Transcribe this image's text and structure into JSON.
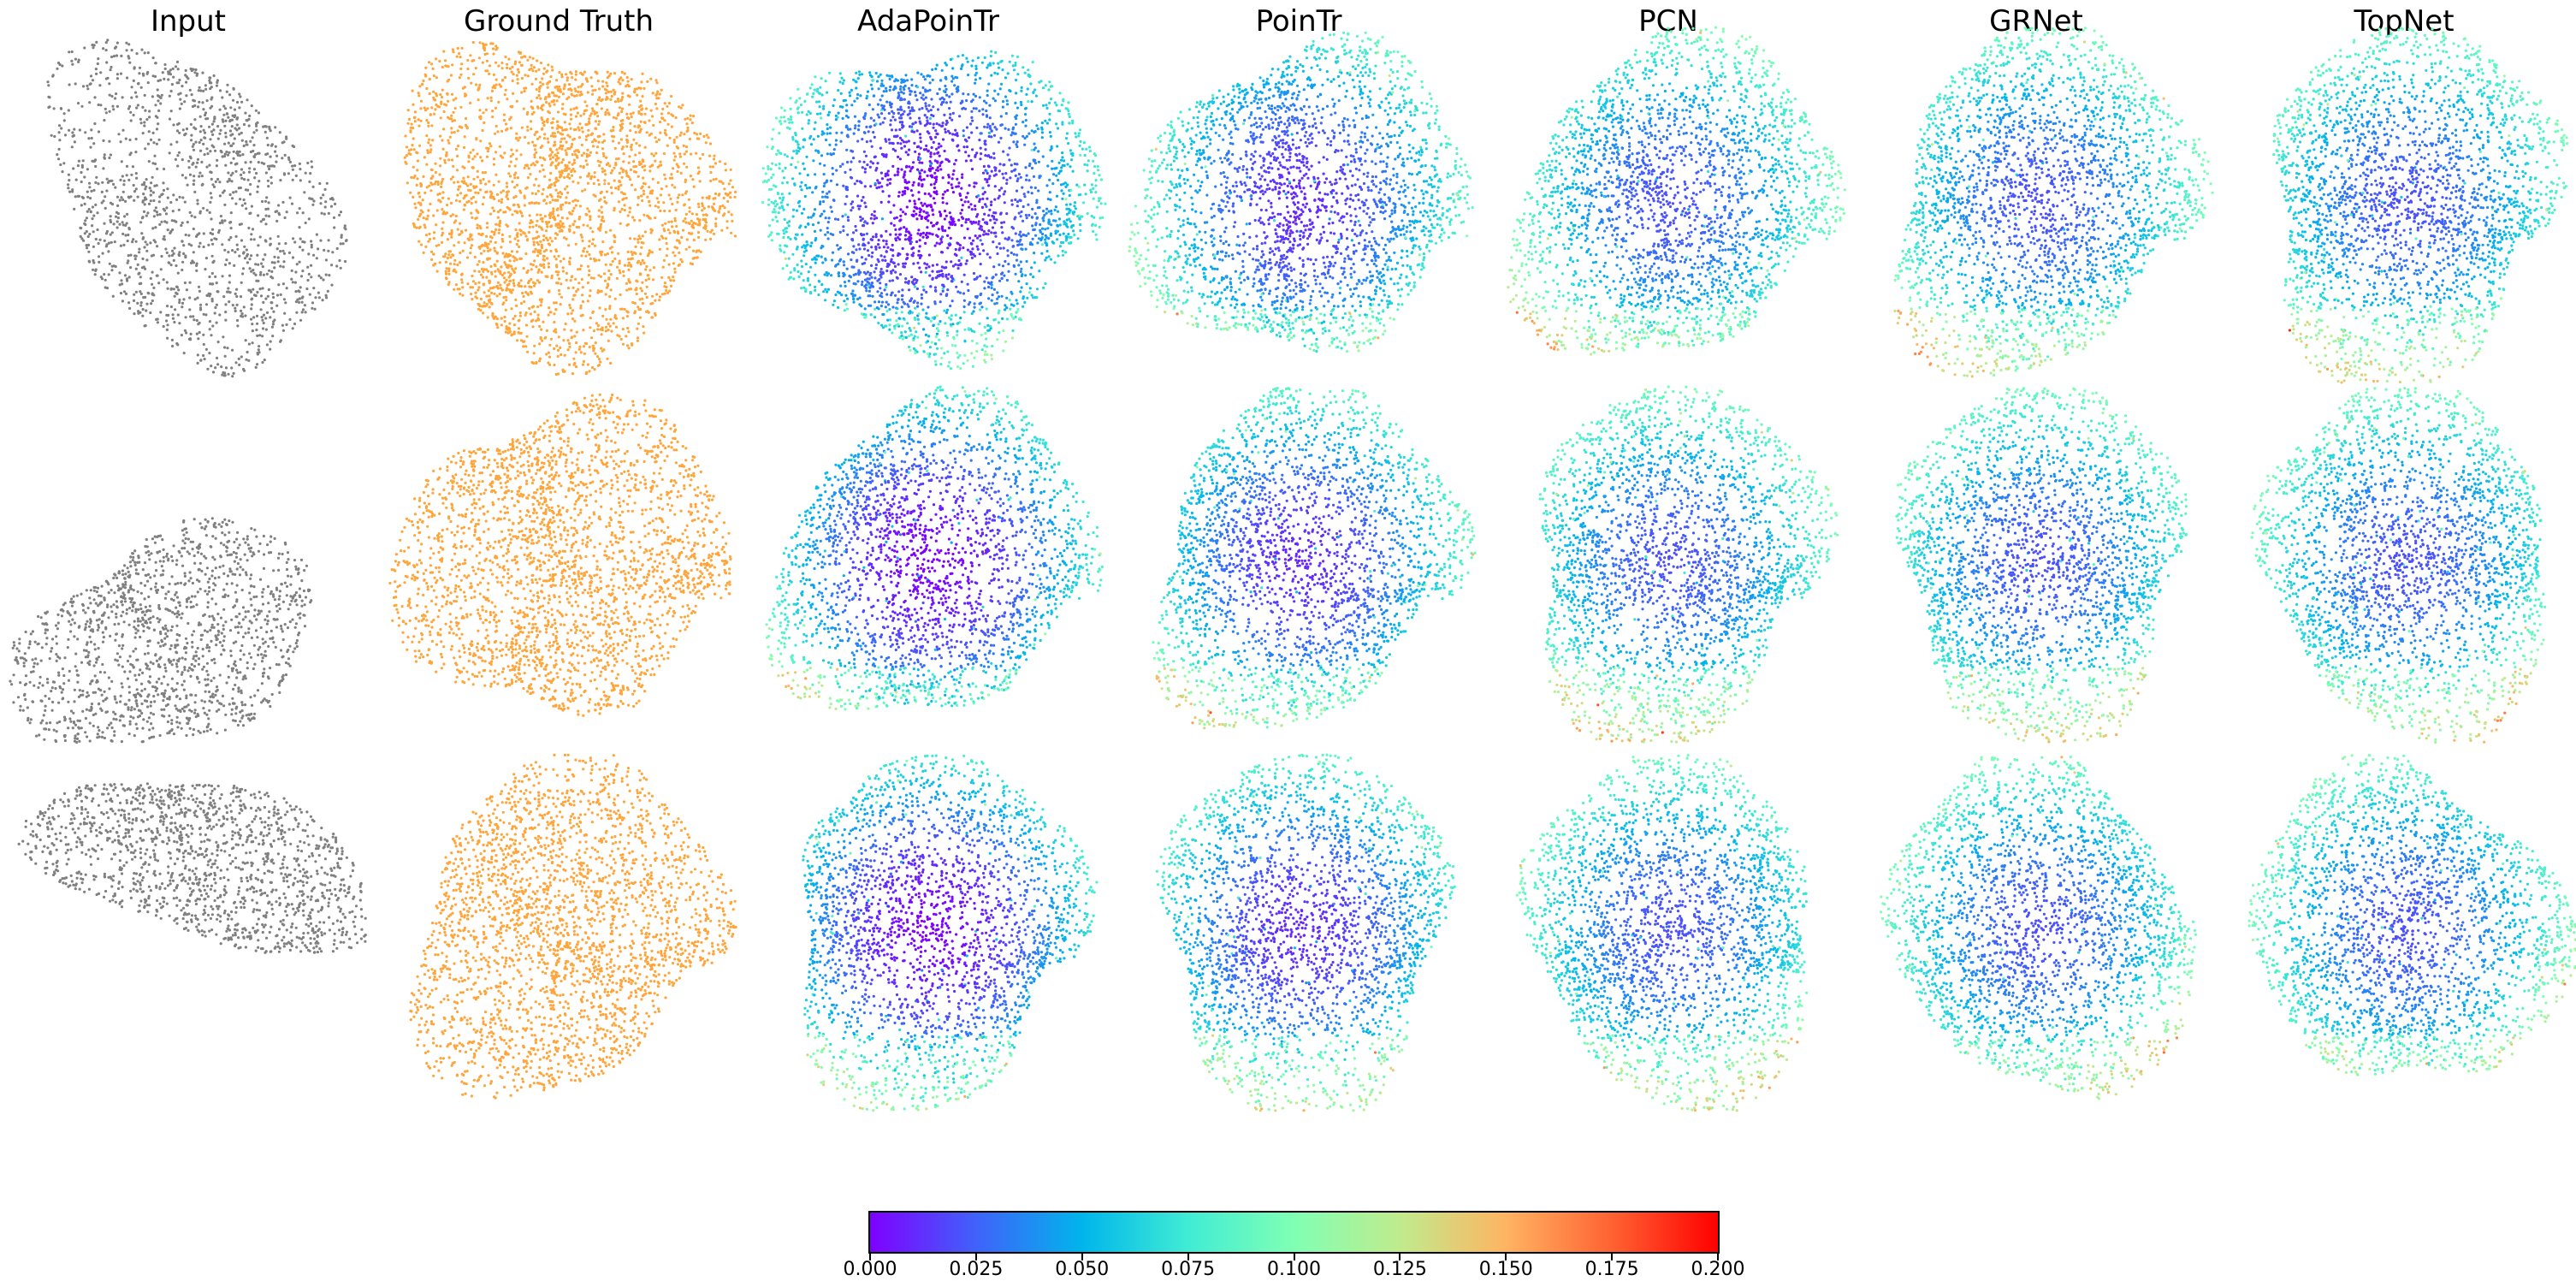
{
  "columns": [
    {
      "id": "input",
      "title": "Input",
      "color_mode": "gray"
    },
    {
      "id": "ground-truth",
      "title": "Ground Truth",
      "color_mode": "orange"
    },
    {
      "id": "adapointr",
      "title": "AdaPoinTr",
      "color_mode": "error"
    },
    {
      "id": "pointr",
      "title": "PoinTr",
      "color_mode": "error"
    },
    {
      "id": "pcn",
      "title": "PCN",
      "color_mode": "error"
    },
    {
      "id": "grnet",
      "title": "GRNet",
      "color_mode": "error"
    },
    {
      "id": "topnet",
      "title": "TopNet",
      "color_mode": "error"
    }
  ],
  "rows": 3,
  "colors": {
    "input": "#808080",
    "ground_truth": "#ffa53a",
    "colormap": "rainbow",
    "colormap_stops": [
      "#7f00ff",
      "#4062fa",
      "#00b5eb",
      "#40ecd4",
      "#80ffb4",
      "#c0eb8d",
      "#ffb462",
      "#ff6232",
      "#ff0000"
    ]
  },
  "colorbar": {
    "min": 0.0,
    "max": 0.2,
    "ticks": [
      "0.000",
      "0.025",
      "0.050",
      "0.075",
      "0.100",
      "0.125",
      "0.150",
      "0.175",
      "0.200"
    ]
  }
}
